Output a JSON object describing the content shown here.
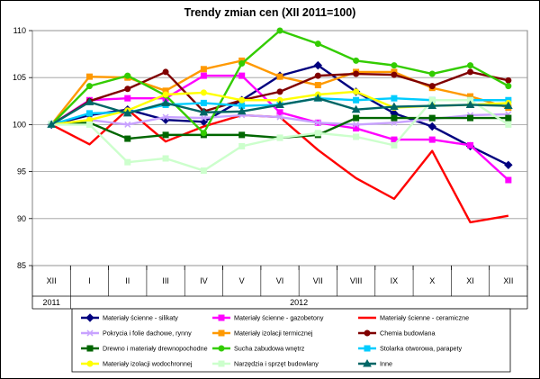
{
  "chart_data": {
    "type": "line",
    "title": "Trendy zmian cen (XII 2011=100)",
    "x": [
      "XII",
      "I",
      "II",
      "III",
      "IV",
      "V",
      "VI",
      "VII",
      "VIII",
      "IX",
      "X",
      "XI",
      "XII"
    ],
    "year_labels": [
      "2011",
      "2012"
    ],
    "ylim": [
      85,
      110
    ],
    "yticks": [
      85,
      90,
      95,
      100,
      105,
      110
    ],
    "grid": true,
    "legend_position": "bottom",
    "series": [
      {
        "name": "Materiały ścienne - silikaty",
        "color": "#00007f",
        "marker": "diamond",
        "values": [
          100,
          101.0,
          101.6,
          100.5,
          100.3,
          102.6,
          105.2,
          106.3,
          103.5,
          101.2,
          99.8,
          97.7,
          95.7
        ]
      },
      {
        "name": "Materiały ścienne - gazobetony",
        "color": "#ff00ff",
        "marker": "square",
        "values": [
          100,
          102.6,
          102.8,
          102.8,
          105.2,
          105.2,
          101.3,
          100.2,
          99.6,
          98.4,
          98.4,
          97.8,
          94.1
        ]
      },
      {
        "name": "Materiały ścienne - ceramiczne",
        "color": "#ff0000",
        "marker": "none",
        "values": [
          100,
          97.9,
          101.6,
          98.2,
          99.8,
          101.0,
          100.8,
          97.3,
          94.3,
          92.1,
          97.2,
          89.6,
          90.3
        ]
      },
      {
        "name": "Pokrycia i folie dachowe, rynny",
        "color": "#c8a2ff",
        "marker": "x",
        "values": [
          100,
          100.5,
          100.0,
          100.8,
          100.7,
          101.0,
          100.8,
          100.2,
          100.0,
          100.2,
          100.6,
          101.0,
          101.1
        ]
      },
      {
        "name": "Materiały izolacji termicznej",
        "color": "#ff9900",
        "marker": "square",
        "values": [
          100,
          105.1,
          105.0,
          103.6,
          105.9,
          106.8,
          105.1,
          104.2,
          105.6,
          105.6,
          103.9,
          103.0,
          101.8
        ]
      },
      {
        "name": "Chemia budowlana",
        "color": "#800000",
        "marker": "circle",
        "values": [
          100,
          102.5,
          103.8,
          105.6,
          101.4,
          102.6,
          103.5,
          105.2,
          105.4,
          105.3,
          104.1,
          105.6,
          104.7
        ]
      },
      {
        "name": "Drewno i materiały drewnopochodne",
        "color": "#006600",
        "marker": "square",
        "values": [
          100,
          100.2,
          98.5,
          98.9,
          98.9,
          98.9,
          98.6,
          98.9,
          100.7,
          100.7,
          100.7,
          100.7,
          100.7
        ]
      },
      {
        "name": "Sucha zabudowa wnętrz",
        "color": "#33cc00",
        "marker": "circle",
        "values": [
          100,
          104.1,
          105.2,
          103.1,
          99.1,
          106.5,
          110.0,
          108.6,
          106.8,
          106.3,
          105.4,
          106.3,
          104.1
        ]
      },
      {
        "name": "Stolarka otworowa, parapety",
        "color": "#00ccff",
        "marker": "square",
        "values": [
          100,
          101.2,
          101.3,
          102.1,
          102.3,
          102.0,
          102.1,
          102.8,
          102.6,
          102.8,
          102.6,
          102.6,
          102.6
        ]
      },
      {
        "name": "Materiały izolacji wodochronnej",
        "color": "#ffff00",
        "marker": "circle",
        "values": [
          100,
          100.5,
          101.5,
          103.2,
          103.4,
          102.6,
          102.6,
          103.2,
          103.5,
          101.8,
          102.0,
          102.1,
          102.3
        ]
      },
      {
        "name": "Narzędzia i sprzęt budowlany",
        "color": "#ccffcc",
        "marker": "square",
        "values": [
          100,
          100.0,
          96.0,
          96.4,
          95.1,
          97.7,
          98.6,
          99.1,
          98.7,
          97.8,
          102.6,
          102.6,
          100.0
        ]
      },
      {
        "name": "Inne",
        "color": "#006666",
        "marker": "triangle",
        "values": [
          100,
          102.4,
          101.2,
          102.3,
          101.3,
          101.4,
          102.1,
          102.8,
          101.6,
          101.9,
          102.0,
          102.1,
          102.0
        ]
      }
    ]
  }
}
